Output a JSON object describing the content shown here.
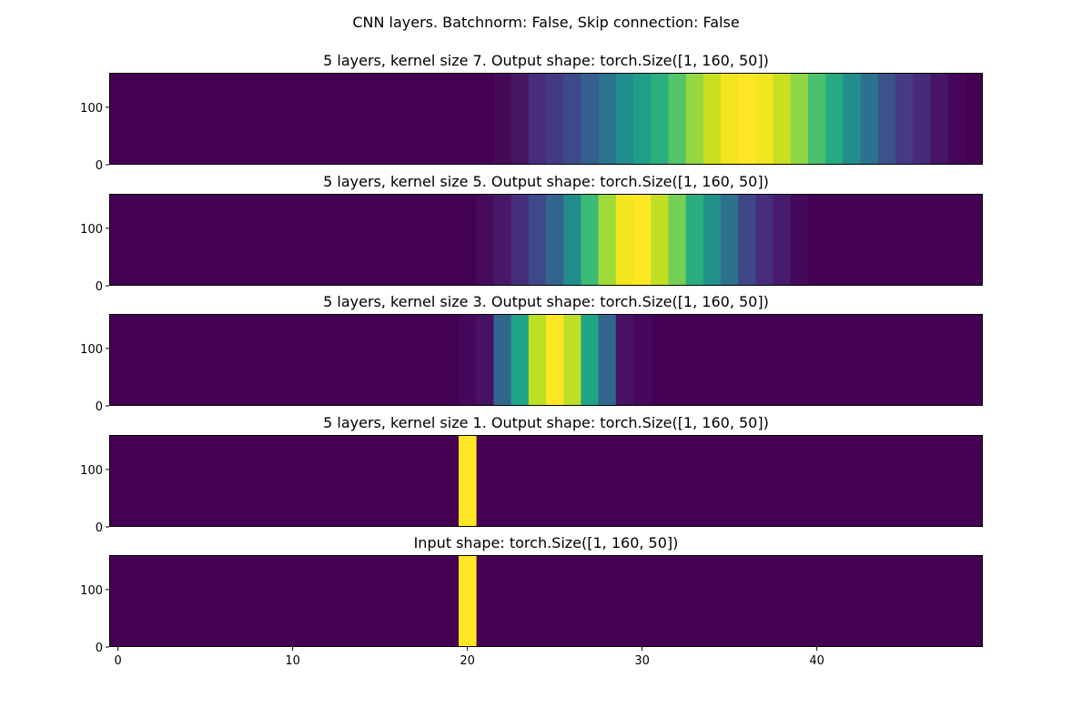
{
  "figure": {
    "suptitle": "CNN layers. Batchnorm: False, Skip connection: False"
  },
  "colors": {
    "background_cell": "#440154",
    "peak_cell": "#fde725",
    "axis": "#000000"
  },
  "chart_data": [
    {
      "type": "heatmap",
      "title": "5 layers, kernel size 7. Output shape: torch.Size([1, 160, 50])",
      "y_ticks": [
        0,
        100
      ],
      "ylim": [
        0,
        160
      ],
      "colormap": "viridis",
      "columns": [
        22,
        23,
        24,
        25,
        26,
        27,
        28,
        29,
        30,
        31,
        32,
        33,
        34,
        35,
        36,
        37,
        38,
        39,
        40,
        41,
        42,
        43,
        44,
        45,
        46,
        47,
        48
      ],
      "colors": [
        "#450a56",
        "#471660",
        "#472d7b",
        "#443a83",
        "#3e4b8a",
        "#355f8d",
        "#2b748e",
        "#228d8d",
        "#1fa088",
        "#2ab07f",
        "#52c569",
        "#93d741",
        "#c8e020",
        "#f1e51d",
        "#fde725",
        "#f1e51d",
        "#c8e020",
        "#8ed645",
        "#49c16d",
        "#25ab82",
        "#228d8d",
        "#2c728e",
        "#3b528b",
        "#443b84",
        "#462b7a",
        "#481467",
        "#46065a"
      ]
    },
    {
      "type": "heatmap",
      "title": "5 layers, kernel size 5. Output shape: torch.Size([1, 160, 50])",
      "y_ticks": [
        0,
        100
      ],
      "ylim": [
        0,
        160
      ],
      "colormap": "viridis",
      "columns": [
        21,
        22,
        23,
        24,
        25,
        26,
        27,
        28,
        29,
        30,
        31,
        32,
        33,
        34,
        35,
        36,
        37,
        38,
        39
      ],
      "colors": [
        "#460a5d",
        "#471868",
        "#472e7c",
        "#3e4a89",
        "#32658e",
        "#228c8d",
        "#3bbb75",
        "#a0da39",
        "#f1e51d",
        "#fde725",
        "#c2df23",
        "#75d054",
        "#29af7f",
        "#21918c",
        "#2c718e",
        "#3f4788",
        "#472d7b",
        "#481a6c",
        "#46085c"
      ]
    },
    {
      "type": "heatmap",
      "title": "5 layers, kernel size 3. Output shape: torch.Size([1, 160, 50])",
      "y_ticks": [
        0,
        100
      ],
      "ylim": [
        0,
        160
      ],
      "colormap": "viridis",
      "columns": [
        20,
        21,
        22,
        23,
        24,
        25,
        26,
        27,
        28,
        29,
        30
      ],
      "colors": [
        "#46085c",
        "#471164",
        "#31668e",
        "#20a486",
        "#bddf26",
        "#fde725",
        "#bddf26",
        "#20a486",
        "#31668e",
        "#471164",
        "#46085c"
      ]
    },
    {
      "type": "heatmap",
      "title": "5 layers, kernel size 1. Output shape: torch.Size([1, 160, 50])",
      "y_ticks": [
        0,
        100
      ],
      "ylim": [
        0,
        160
      ],
      "colormap": "viridis",
      "columns": [
        20
      ],
      "colors": [
        "#fde725"
      ]
    },
    {
      "type": "heatmap",
      "title": "Input shape: torch.Size([1, 160, 50])",
      "y_ticks": [
        0,
        100
      ],
      "ylim": [
        0,
        160
      ],
      "x_ticks": [
        0,
        10,
        20,
        30,
        40
      ],
      "xlim": [
        -0.5,
        49.5
      ],
      "colormap": "viridis",
      "columns": [
        20
      ],
      "colors": [
        "#fde725"
      ]
    }
  ]
}
